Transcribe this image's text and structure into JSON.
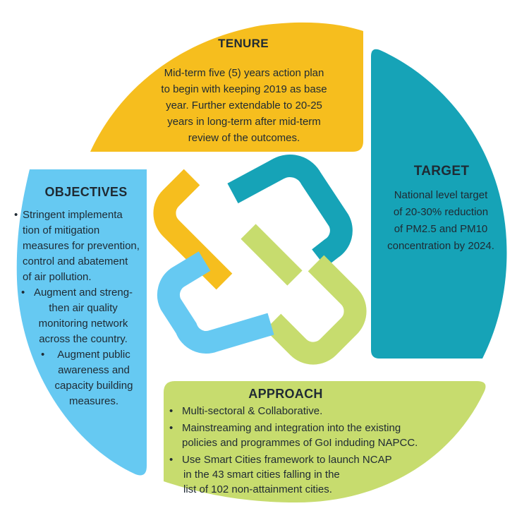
{
  "colors": {
    "tenure": "#f6be1e",
    "target": "#16a3b7",
    "objectives": "#66c9f2",
    "approach": "#c7dc6e"
  },
  "tenure": {
    "title": "TENURE",
    "lines": [
      "Mid-term five (5) years action plan",
      "to begin with keeping 2019 as base",
      "year. Further extendable to 20-25",
      "years in long-term after mid-term",
      "review of the outcomes."
    ]
  },
  "target": {
    "title": "TARGET",
    "lines": [
      "National level target",
      "of 20-30% reduction",
      "of PM2.5 and PM10",
      "concentration by 2024."
    ]
  },
  "objectives": {
    "title": "OBJECTIVES",
    "items": [
      [
        "Stringent implementa",
        "tion of mitigation",
        "measures for prevention,",
        "control and abatement",
        "of air pollution."
      ],
      [
        "Augment and streng-",
        "then air quality",
        "monitoring network",
        "across the country."
      ],
      [
        "Augment public",
        "awareness and",
        "capacity building",
        "measures."
      ]
    ]
  },
  "approach": {
    "title": "APPROACH",
    "items": [
      [
        "Multi-sectoral & Collaborative."
      ],
      [
        "Mainstreaming and integration into the existing",
        "policies and programmes of GoI induding NAPCC."
      ],
      [
        "Use Smart Cities framework to launch NCAP",
        "in the 43 smart cities falling in the",
        "list of 102 non-attainment cities."
      ]
    ]
  }
}
